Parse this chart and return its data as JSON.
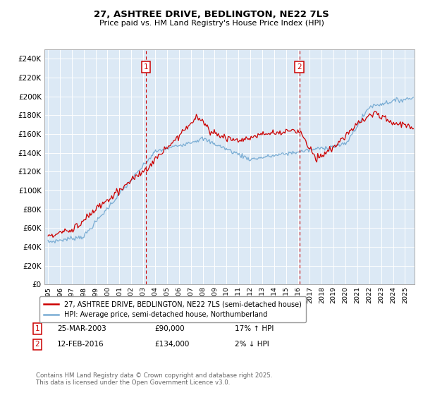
{
  "title": "27, ASHTREE DRIVE, BEDLINGTON, NE22 7LS",
  "subtitle": "Price paid vs. HM Land Registry's House Price Index (HPI)",
  "legend_line1": "27, ASHTREE DRIVE, BEDLINGTON, NE22 7LS (semi-detached house)",
  "legend_line2": "HPI: Average price, semi-detached house, Northumberland",
  "footer": "Contains HM Land Registry data © Crown copyright and database right 2025.\nThis data is licensed under the Open Government Licence v3.0.",
  "annotation1_date": "25-MAR-2003",
  "annotation1_price": "£90,000",
  "annotation1_hpi": "17% ↑ HPI",
  "annotation2_date": "12-FEB-2016",
  "annotation2_price": "£134,000",
  "annotation2_hpi": "2% ↓ HPI",
  "red_color": "#cc0000",
  "blue_color": "#7aadd4",
  "plot_bg": "#dce9f5",
  "grid_color": "#ffffff",
  "ann_color": "#cc0000",
  "ylim_max": 250000,
  "ylim_min": 0,
  "xmin": 1994.7,
  "xmax": 2025.8,
  "ann1_x": 2003.22,
  "ann2_x": 2016.12
}
